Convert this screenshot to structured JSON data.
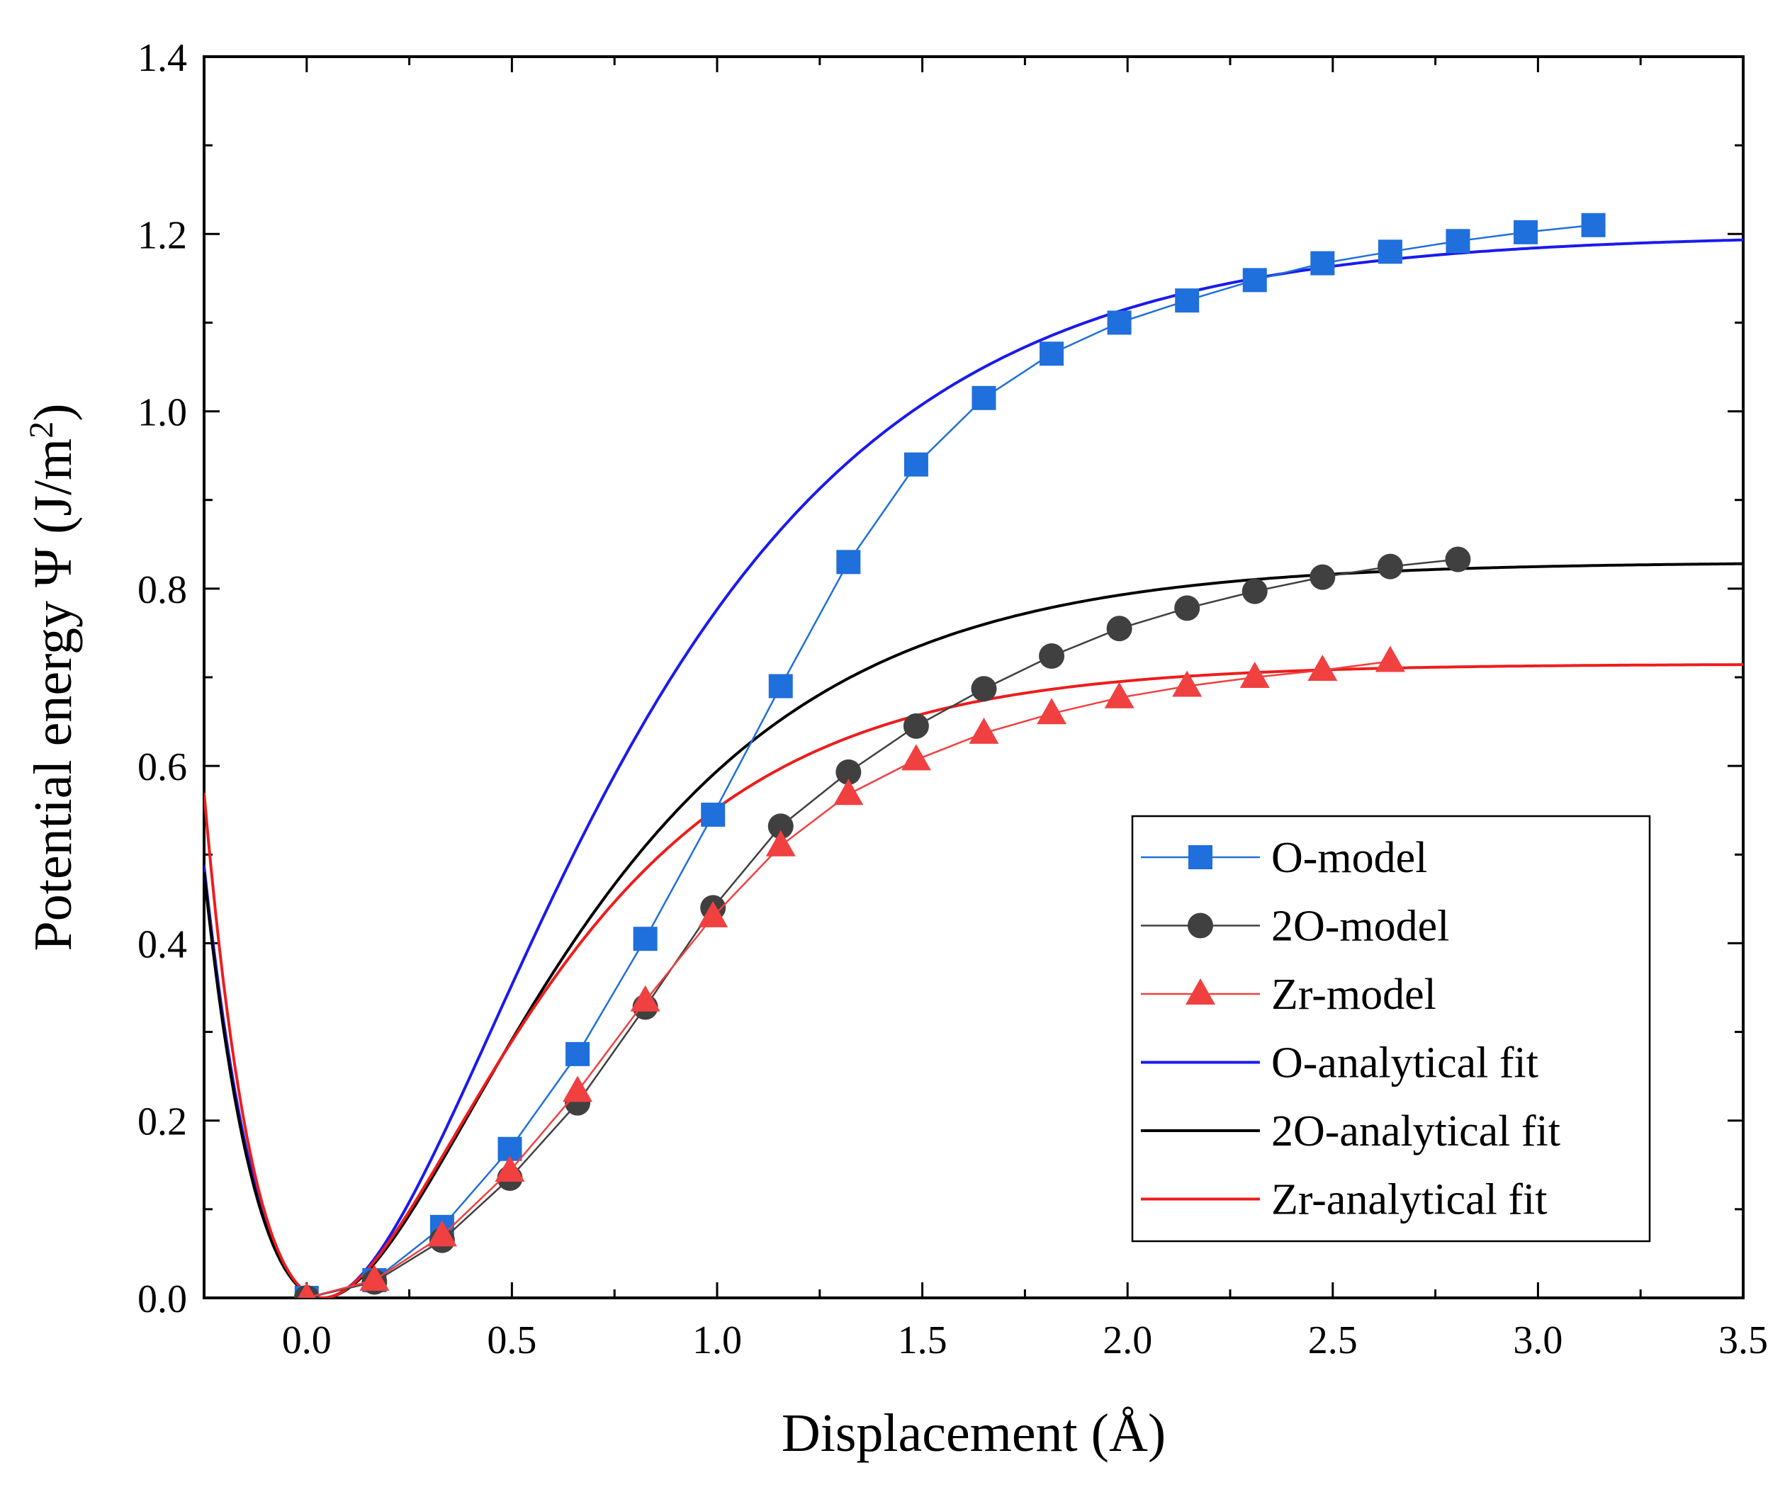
{
  "chart_data": {
    "type": "line",
    "title": "",
    "xlabel": "Displacement (Å)",
    "ylabel_main": "Potential energy Ψ (J/m",
    "ylabel_sup": "2",
    "ylabel_end": ")",
    "xlim": [
      -0.25,
      3.5
    ],
    "ylim": [
      0.0,
      1.4
    ],
    "xticks": [
      "0.0",
      "0.5",
      "1.0",
      "1.5",
      "2.0",
      "2.5",
      "3.0",
      "3.5"
    ],
    "yticks": [
      "0.0",
      "0.2",
      "0.4",
      "0.6",
      "0.8",
      "1.0",
      "1.2",
      "1.4"
    ],
    "grid": false,
    "legend_position": "bottom-right",
    "series": [
      {
        "name": "O-model",
        "kind": "markers",
        "marker": "square",
        "color": "#1f6fdc",
        "x": [
          0.0,
          0.165,
          0.33,
          0.495,
          0.66,
          0.825,
          0.99,
          1.155,
          1.32,
          1.485,
          1.65,
          1.815,
          1.98,
          2.145,
          2.31,
          2.475,
          2.64,
          2.805,
          2.97,
          3.135
        ],
        "y": [
          0.0,
          0.02,
          0.08,
          0.168,
          0.275,
          0.405,
          0.545,
          0.69,
          0.83,
          0.94,
          1.015,
          1.065,
          1.1,
          1.125,
          1.148,
          1.167,
          1.18,
          1.192,
          1.202,
          1.21
        ]
      },
      {
        "name": "2O-model",
        "kind": "markers",
        "marker": "circle",
        "color": "#404040",
        "x": [
          0.0,
          0.165,
          0.33,
          0.495,
          0.66,
          0.825,
          0.99,
          1.155,
          1.32,
          1.485,
          1.65,
          1.815,
          1.98,
          2.145,
          2.31,
          2.475,
          2.64,
          2.805
        ],
        "y": [
          0.0,
          0.018,
          0.065,
          0.135,
          0.22,
          0.328,
          0.44,
          0.532,
          0.593,
          0.645,
          0.687,
          0.724,
          0.755,
          0.778,
          0.797,
          0.813,
          0.825,
          0.833
        ]
      },
      {
        "name": "Zr-model",
        "kind": "markers",
        "marker": "triangle",
        "color": "#f04040",
        "x": [
          0.0,
          0.165,
          0.33,
          0.495,
          0.66,
          0.825,
          0.99,
          1.155,
          1.32,
          1.485,
          1.65,
          1.815,
          1.98,
          2.145,
          2.31,
          2.475,
          2.64
        ],
        "y": [
          0.0,
          0.02,
          0.07,
          0.143,
          0.233,
          0.335,
          0.43,
          0.51,
          0.568,
          0.607,
          0.637,
          0.659,
          0.677,
          0.69,
          0.7,
          0.708,
          0.718
        ]
      },
      {
        "name": "O-analytical fit",
        "kind": "curve",
        "color": "#1a1aee",
        "fit": {
          "D": 1.2,
          "a": 1.7,
          "r0": 0.04
        }
      },
      {
        "name": "2O-analytical fit",
        "kind": "curve",
        "color": "#000000",
        "fit": {
          "D": 0.83,
          "a": 1.95,
          "r0": 0.04
        }
      },
      {
        "name": "Zr-analytical fit",
        "kind": "curve",
        "color": "#ee1c1c",
        "fit": {
          "D": 0.715,
          "a": 2.2,
          "r0": 0.04
        }
      }
    ]
  }
}
